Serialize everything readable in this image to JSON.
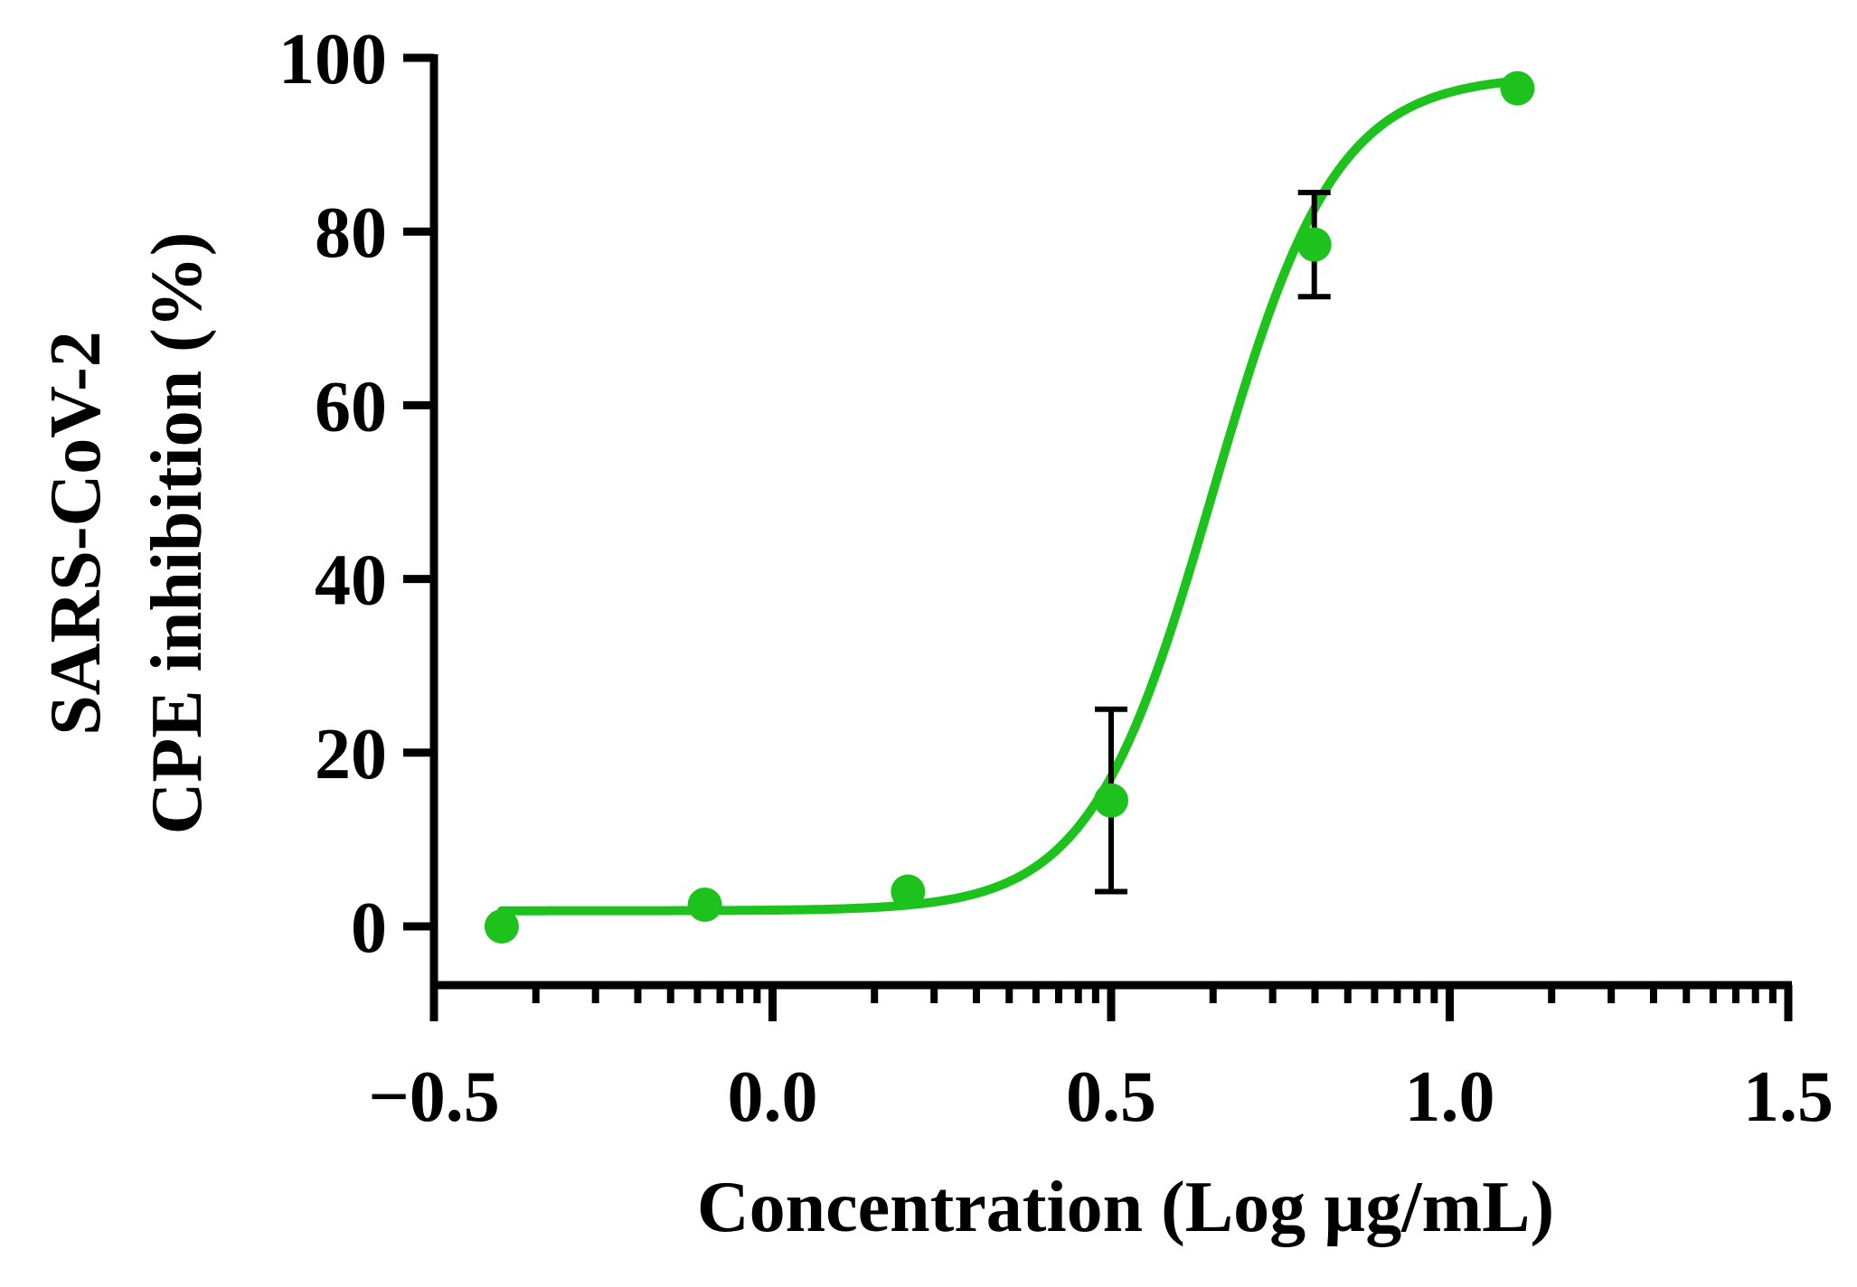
{
  "chart_data": {
    "type": "scatter",
    "title": "",
    "xlabel": "Concentration (Log µg/mL)",
    "ylabel_lines": [
      "SARS-CoV-2",
      "CPE inhibition (%)"
    ],
    "xlim": [
      -0.5,
      1.5
    ],
    "ylim": [
      -5,
      100
    ],
    "x_ticks": [
      -0.5,
      0.0,
      0.5,
      1.0,
      1.5
    ],
    "x_tick_labels": [
      "−0.5",
      "0.0",
      "0.5",
      "1.0",
      "1.5"
    ],
    "y_ticks": [
      0,
      20,
      40,
      60,
      80,
      100
    ],
    "y_tick_labels": [
      "0",
      "20",
      "40",
      "60",
      "80",
      "100"
    ],
    "x_minor_ticks": "log-scale minor ticks within each 0.5 decade",
    "grid": false,
    "legend": "none",
    "series": [
      {
        "points": [
          {
            "x": -0.4,
            "y": 0.0,
            "err": 0
          },
          {
            "x": -0.1,
            "y": 2.5,
            "err": 0
          },
          {
            "x": 0.2,
            "y": 4.0,
            "err": 0
          },
          {
            "x": 0.5,
            "y": 14.5,
            "err": 10.5
          },
          {
            "x": 0.8,
            "y": 78.5,
            "err": 6.0
          },
          {
            "x": 1.1,
            "y": 96.5,
            "err": 0
          }
        ],
        "fit": {
          "model": "four-parameter logistic",
          "bottom": 1.8,
          "top": 98.0,
          "log_ec50": 0.65,
          "hill_slope": 4.8,
          "x_range": [
            -0.4,
            1.1
          ]
        },
        "color": "#1DC21D"
      }
    ],
    "error_bar_color": "#000000",
    "axis_color": "#000000"
  }
}
